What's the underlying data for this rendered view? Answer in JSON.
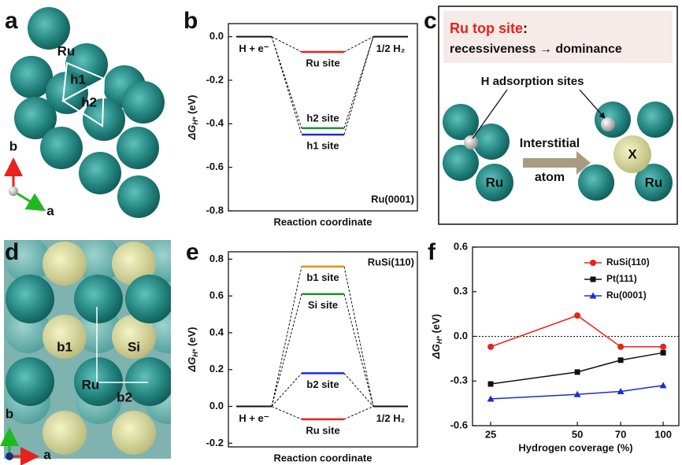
{
  "panel_labels": [
    "a",
    "b",
    "c",
    "d",
    "e",
    "f"
  ],
  "panel_a": {
    "atom": "Ru",
    "sites": [
      "h1",
      "h2"
    ],
    "axes": [
      "b",
      "a"
    ]
  },
  "panel_c": {
    "title": "Ru top site",
    "title_suffix": ":",
    "subtitle": "recessiveness → dominance",
    "callout": "H adsorption sites",
    "arrow_label": [
      "Interstitial",
      "atom"
    ],
    "atom": "Ru",
    "interstitial": "X"
  },
  "panel_d": {
    "sites": [
      "b1",
      "Si",
      "Ru",
      "b2"
    ],
    "axes": [
      "b",
      "a"
    ]
  },
  "chart_data": [
    {
      "type": "energy",
      "y_label": {
        "symbol": "ΔG",
        "subscript": "H*",
        "unit": " (eV)"
      },
      "x_label": "Reaction coordinate",
      "annotation": "Ru(0001)",
      "annotation_position": "lower right",
      "start": {
        "label": "H + e⁻",
        "value": 0
      },
      "end": {
        "label": "1/2 H₂",
        "value": 0
      },
      "levels": [
        {
          "name": "Ru site",
          "value": -0.07,
          "color": "#e8221c"
        },
        {
          "name": "h2 site",
          "value": -0.42,
          "color": "#1e9030"
        },
        {
          "name": "h1 site",
          "value": -0.45,
          "color": "#1c2bd8"
        }
      ],
      "ylim": [
        -0.8,
        0.06
      ],
      "yticks": [
        {
          "value": 0,
          "label": "0.0"
        },
        -0.2,
        -0.4,
        -0.6,
        -0.8
      ]
    },
    {
      "type": "energy",
      "y_label": {
        "symbol": "ΔG",
        "subscript": "H*",
        "unit": " (eV)"
      },
      "x_label": "Reaction coordinate",
      "annotation": "RuSi(110)",
      "annotation_position": "upper right",
      "start": {
        "label": "H + e⁻",
        "value": 0
      },
      "end": {
        "label": "1/2 H₂",
        "value": 0
      },
      "levels": [
        {
          "name": "b1 site",
          "value": 0.76,
          "color": "#f28c1b"
        },
        {
          "name": "Si site",
          "value": 0.61,
          "color": "#1e9030"
        },
        {
          "name": "b2 site",
          "value": 0.18,
          "color": "#1c2bd8"
        },
        {
          "name": "Ru site",
          "value": -0.07,
          "color": "#e8221c"
        }
      ],
      "ylim": [
        -0.22,
        0.84
      ],
      "yticks": [
        -0.2,
        {
          "value": 0,
          "label": "0.0"
        },
        0.2,
        0.4,
        0.6,
        0.8
      ]
    },
    {
      "type": "line",
      "y_label": {
        "symbol": "ΔG",
        "subscript": "H*",
        "unit": " (eV)"
      },
      "x_label": "Hydrogen coverage (%)",
      "categories": [
        "25",
        "50",
        "70",
        "100"
      ],
      "series": [
        {
          "name": "RuSi(110)",
          "color": "#e8221c",
          "marker": "circle",
          "values": [
            -0.07,
            0.14,
            -0.07,
            -0.07
          ]
        },
        {
          "name": "Pt(111)",
          "color": "#111111",
          "marker": "square",
          "values": [
            -0.32,
            -0.24,
            -0.16,
            -0.11
          ]
        },
        {
          "name": "Ru(0001)",
          "color": "#1c2bd8",
          "marker": "triangle",
          "values": [
            -0.42,
            -0.39,
            -0.37,
            -0.33
          ]
        }
      ],
      "ylim": [
        -0.6,
        0.6
      ],
      "yticks": [
        -0.6,
        -0.3,
        {
          "value": 0,
          "label": "0.0"
        },
        0.3,
        0.6
      ],
      "zero_line": true,
      "legend": "upper right"
    }
  ]
}
